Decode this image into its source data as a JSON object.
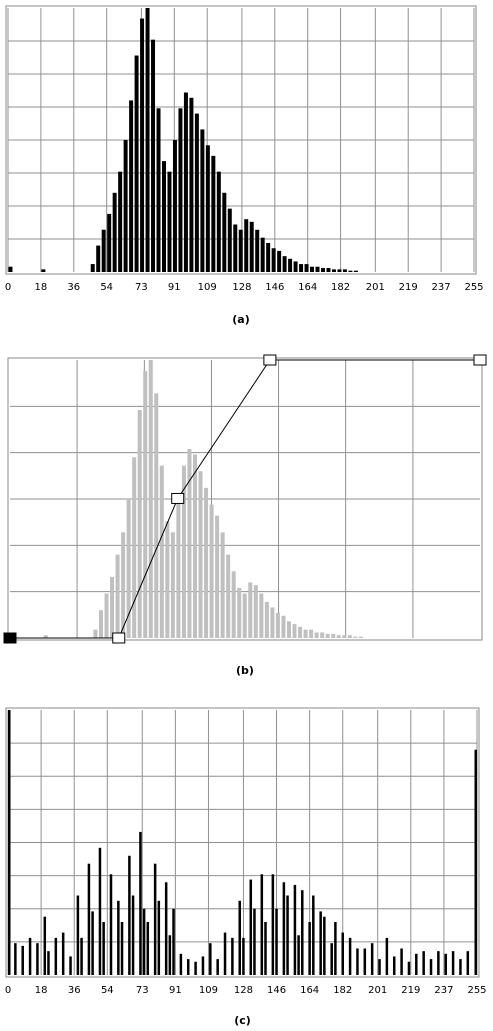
{
  "chart_data": [
    {
      "type": "histogram",
      "caption": "(a)",
      "color": "#000000",
      "bins": [
        0,
        3,
        6,
        9,
        12,
        15,
        18,
        21,
        24,
        27,
        30,
        33,
        36,
        39,
        42,
        45,
        48,
        51,
        54,
        57,
        60,
        63,
        66,
        69,
        72,
        75,
        78,
        81,
        84,
        87,
        90,
        93,
        96,
        99,
        102,
        105,
        108,
        111,
        114,
        117,
        120,
        123,
        126,
        129,
        132,
        135,
        138,
        141,
        144,
        147,
        150,
        153,
        156,
        159,
        162,
        165,
        168,
        171,
        174,
        177,
        180,
        183,
        186,
        189,
        192,
        195,
        198,
        201,
        204,
        207,
        210,
        213,
        216,
        219,
        222,
        225,
        228,
        231,
        234,
        237,
        240,
        243,
        246,
        249,
        252,
        255
      ],
      "values": [
        2,
        0,
        0,
        0,
        0,
        0,
        1,
        0,
        0,
        0,
        0,
        0,
        0,
        0,
        0,
        3,
        10,
        16,
        22,
        30,
        38,
        50,
        65,
        82,
        96,
        100,
        88,
        62,
        42,
        38,
        50,
        62,
        68,
        66,
        60,
        54,
        48,
        44,
        38,
        30,
        24,
        18,
        16,
        20,
        19,
        16,
        13,
        11,
        9,
        8,
        6,
        5,
        4,
        3,
        3,
        2,
        2,
        1.5,
        1.5,
        1,
        1,
        1,
        0.5,
        0.5,
        0,
        0,
        0,
        0,
        0,
        0,
        0,
        0,
        0,
        0,
        0,
        0,
        0,
        0,
        0,
        0,
        0,
        0,
        0,
        0,
        0
      ],
      "xlim": [
        0,
        255
      ],
      "ylim": [
        0,
        100
      ],
      "xticks": [
        0,
        18,
        36,
        54,
        73,
        91,
        109,
        128,
        146,
        164,
        182,
        201,
        219,
        237,
        255
      ],
      "ygrid": [
        12.5,
        25,
        37.5,
        50,
        62.5,
        75,
        87.5
      ]
    },
    {
      "type": "curve",
      "caption": "(b)",
      "histogram_color": "#c0c0c0",
      "x": [
        0,
        59,
        91,
        141,
        255
      ],
      "y": [
        0,
        0,
        128,
        255,
        255
      ],
      "xlim": [
        0,
        255
      ],
      "ylim": [
        0,
        255
      ],
      "xgrid": [
        36.4,
        72.9,
        109.3,
        145.7,
        182.1,
        218.6
      ],
      "ygrid": [
        42.5,
        85,
        127.5,
        170,
        212.5
      ]
    },
    {
      "type": "bar",
      "caption": "(c)",
      "color": "#000000",
      "x": [
        0,
        4,
        8,
        12,
        16,
        20,
        22,
        26,
        30,
        34,
        38,
        40,
        44,
        46,
        50,
        52,
        56,
        60,
        62,
        66,
        68,
        72,
        74,
        76,
        80,
        82,
        86,
        88,
        90,
        94,
        98,
        102,
        106,
        110,
        114,
        118,
        122,
        126,
        128,
        132,
        134,
        138,
        140,
        144,
        146,
        150,
        152,
        156,
        158,
        160,
        164,
        166,
        170,
        172,
        176,
        178,
        182,
        186,
        190,
        194,
        198,
        202,
        206,
        210,
        214,
        218,
        222,
        226,
        230,
        234,
        238,
        242,
        246,
        250,
        255
      ],
      "values": [
        100,
        12,
        11,
        14,
        12,
        22,
        9,
        14,
        16,
        7,
        30,
        14,
        42,
        24,
        48,
        20,
        38,
        28,
        20,
        45,
        30,
        54,
        25,
        20,
        42,
        28,
        35,
        15,
        25,
        8,
        6,
        5,
        7,
        12,
        6,
        16,
        14,
        28,
        14,
        36,
        25,
        38,
        20,
        38,
        25,
        35,
        30,
        34,
        15,
        32,
        20,
        30,
        24,
        22,
        12,
        20,
        16,
        14,
        10,
        10,
        12,
        6,
        14,
        7,
        10,
        5,
        8,
        9,
        6,
        9,
        8,
        9,
        6,
        9,
        85
      ],
      "xlim": [
        0,
        255
      ],
      "ylim": [
        0,
        100
      ],
      "xticks": [
        0,
        18,
        36,
        54,
        73,
        91,
        109,
        128,
        146,
        164,
        182,
        201,
        219,
        237,
        255
      ],
      "ygrid": [
        12.5,
        25,
        37.5,
        50,
        62.5,
        75,
        87.5
      ]
    }
  ]
}
